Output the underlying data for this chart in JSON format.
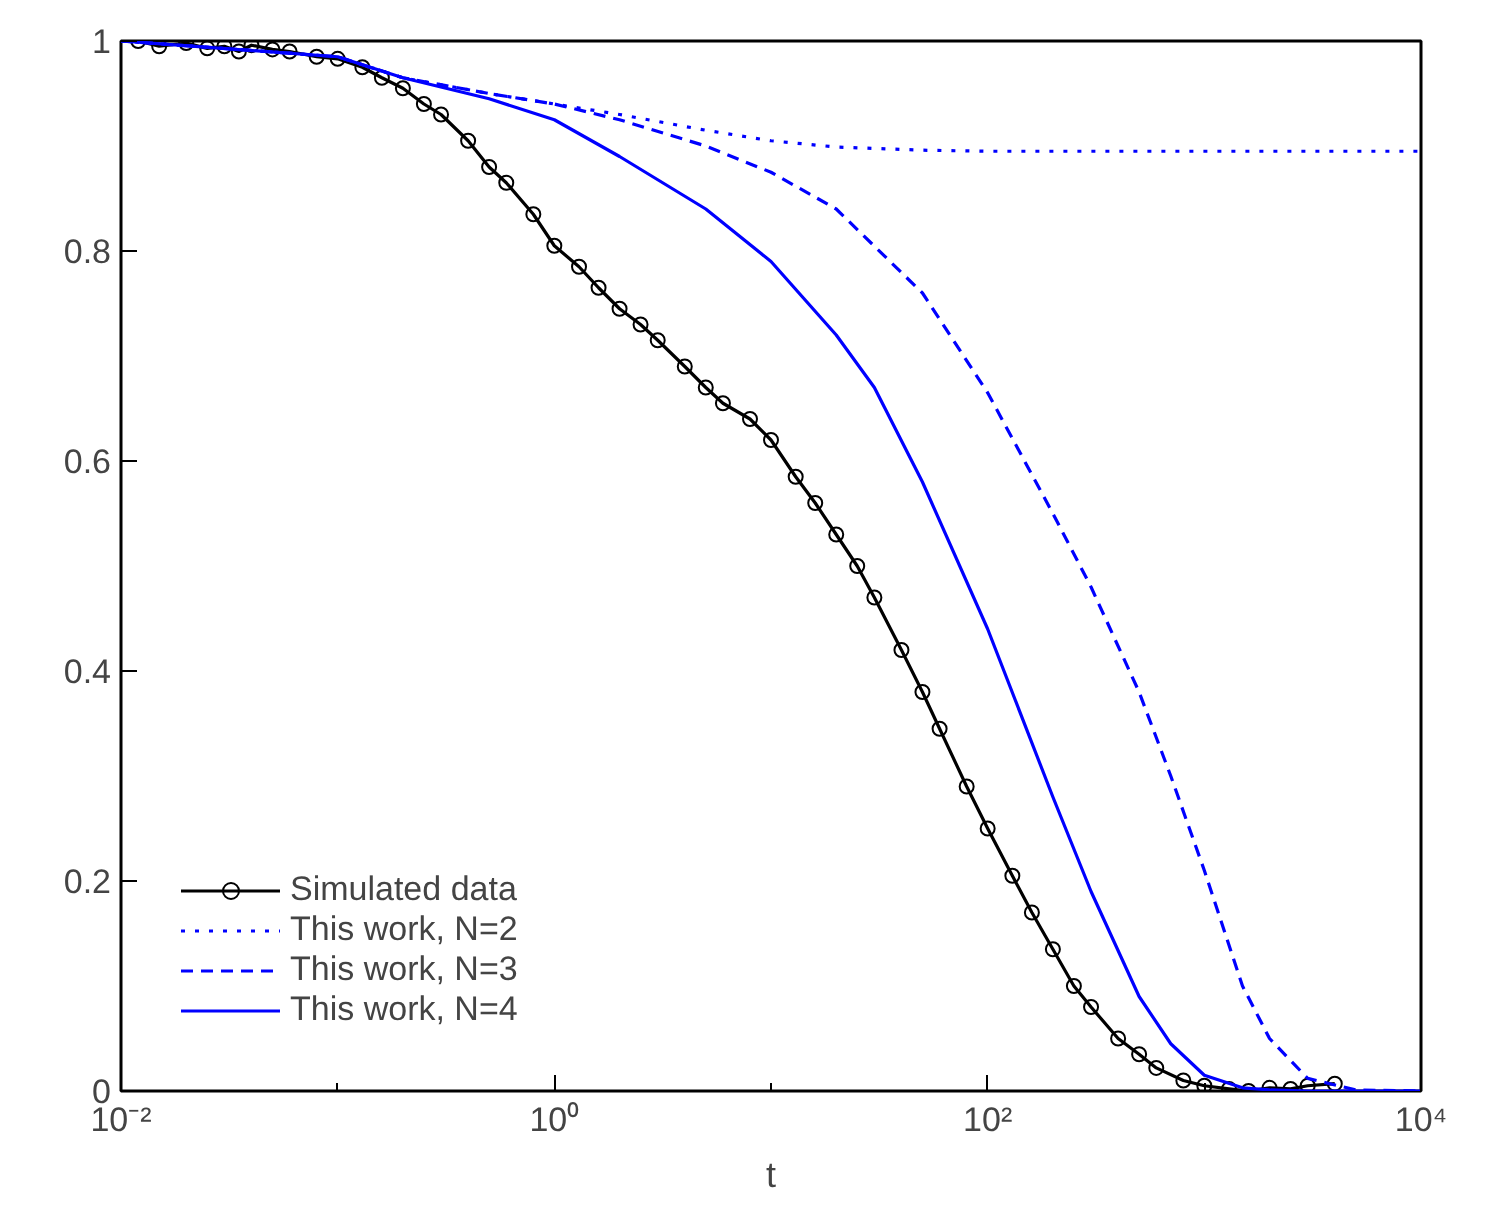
{
  "chart_data": {
    "type": "line",
    "xlabel": "t",
    "log": "x",
    "xlim": [
      0.01,
      10000
    ],
    "ylim": [
      0,
      1
    ],
    "xticks": [
      {
        "value": 0.01,
        "label": "10⁻²"
      },
      {
        "value": 1,
        "label": "10⁰"
      },
      {
        "value": 100,
        "label": "10²"
      },
      {
        "value": 10000,
        "label": "10⁴"
      }
    ],
    "yticks": [
      0,
      0.2,
      0.4,
      0.6,
      0.8,
      1
    ],
    "grid": false,
    "legend": "bottom left",
    "series": [
      {
        "name": "Simulated data",
        "marker": "circle",
        "line_style": "solid",
        "color": "#000000",
        "x": [
          0.012,
          0.015,
          0.02,
          0.025,
          0.03,
          0.035,
          0.04,
          0.05,
          0.06,
          0.08,
          0.1,
          0.13,
          0.16,
          0.2,
          0.25,
          0.3,
          0.4,
          0.5,
          0.6,
          0.8,
          1,
          1.3,
          1.6,
          2,
          2.5,
          3,
          4,
          5,
          6,
          8,
          10,
          13,
          16,
          20,
          25,
          30,
          40,
          50,
          60,
          80,
          100,
          130,
          160,
          200,
          250,
          300,
          400,
          500,
          600,
          800,
          1000,
          1300,
          1600,
          2000,
          2500,
          3000,
          4000
        ],
        "values": [
          1,
          0.995,
          0.998,
          0.993,
          0.995,
          0.99,
          0.996,
          0.992,
          0.99,
          0.985,
          0.983,
          0.975,
          0.965,
          0.955,
          0.94,
          0.93,
          0.905,
          0.88,
          0.865,
          0.835,
          0.805,
          0.785,
          0.765,
          0.745,
          0.73,
          0.715,
          0.69,
          0.67,
          0.655,
          0.64,
          0.62,
          0.585,
          0.56,
          0.53,
          0.5,
          0.47,
          0.42,
          0.38,
          0.345,
          0.29,
          0.25,
          0.205,
          0.17,
          0.135,
          0.1,
          0.08,
          0.05,
          0.035,
          0.022,
          0.01,
          0.005,
          0.002,
          0,
          0.003,
          0.002,
          0.005,
          0.007
        ]
      },
      {
        "name": "This work, N=2",
        "marker": "none",
        "line_style": "dotted",
        "color": "#0000ff",
        "x": [
          0.01,
          0.1,
          0.2,
          0.5,
          1,
          2,
          5,
          10,
          20,
          50,
          100,
          1000,
          10000
        ],
        "values": [
          1,
          0.985,
          0.965,
          0.95,
          0.94,
          0.93,
          0.915,
          0.905,
          0.899,
          0.896,
          0.895,
          0.895,
          0.895
        ]
      },
      {
        "name": "This work, N=3",
        "marker": "none",
        "line_style": "dashed",
        "color": "#0000ff",
        "x": [
          0.01,
          0.1,
          0.2,
          0.5,
          1,
          2,
          5,
          10,
          20,
          50,
          100,
          200,
          300,
          500,
          700,
          1000,
          1500,
          2000,
          3000,
          5000,
          10000
        ],
        "values": [
          1,
          0.985,
          0.965,
          0.95,
          0.94,
          0.925,
          0.9,
          0.875,
          0.84,
          0.76,
          0.665,
          0.55,
          0.48,
          0.38,
          0.3,
          0.21,
          0.1,
          0.05,
          0.012,
          0.001,
          0
        ]
      },
      {
        "name": "This work, N=4",
        "marker": "none",
        "line_style": "solid",
        "color": "#0000ff",
        "x": [
          0.01,
          0.1,
          0.2,
          0.5,
          1,
          2,
          5,
          10,
          20,
          30,
          50,
          100,
          200,
          300,
          500,
          700,
          1000,
          1500,
          2000,
          3000,
          10000
        ],
        "values": [
          1,
          0.985,
          0.965,
          0.945,
          0.925,
          0.89,
          0.84,
          0.79,
          0.72,
          0.67,
          0.58,
          0.44,
          0.28,
          0.19,
          0.09,
          0.045,
          0.015,
          0.003,
          0.001,
          0,
          0
        ]
      }
    ]
  }
}
